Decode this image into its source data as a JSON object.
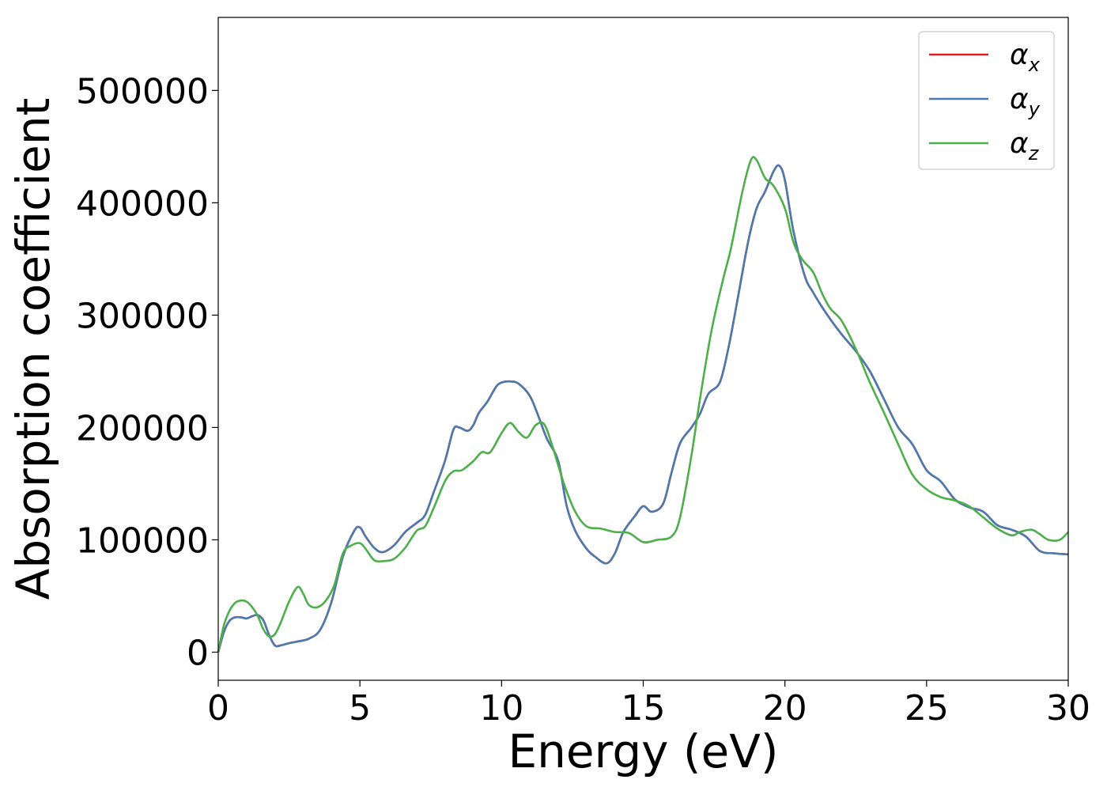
{
  "chart_data": {
    "type": "line",
    "xlabel": "Energy (eV)",
    "ylabel": "Absorption coefficient",
    "xlim": [
      0,
      30
    ],
    "ylim": [
      -25000,
      565000
    ],
    "xticks": [
      0,
      5,
      10,
      15,
      20,
      25,
      30
    ],
    "xtick_labels": [
      "0",
      "5",
      "10",
      "15",
      "20",
      "25",
      "30"
    ],
    "yticks": [
      0,
      100000,
      200000,
      300000,
      400000,
      500000
    ],
    "ytick_labels": [
      "0",
      "100000",
      "200000",
      "300000",
      "400000",
      "500000"
    ],
    "grid": false,
    "legend_position": "top-right",
    "series": [
      {
        "name": "α_x",
        "legend_main": "α",
        "legend_sub": "x",
        "color": "#e41a1c",
        "x": [
          0,
          0.2,
          0.4,
          0.6,
          0.8,
          1.0,
          1.2,
          1.4,
          1.6,
          1.8,
          2.0,
          2.2,
          2.5,
          2.8,
          3.2,
          3.6,
          4.0,
          4.4,
          4.8,
          5.0,
          5.2,
          5.5,
          5.8,
          6.2,
          6.6,
          7.0,
          7.3,
          7.6,
          8.0,
          8.3,
          8.5,
          8.8,
          9.0,
          9.2,
          9.5,
          9.8,
          10.0,
          10.3,
          10.6,
          11.0,
          11.3,
          11.6,
          12.0,
          12.3,
          12.6,
          13.0,
          13.3,
          13.7,
          14.0,
          14.3,
          14.7,
          15.0,
          15.3,
          15.7,
          16.0,
          16.3,
          16.7,
          17.0,
          17.3,
          17.7,
          18.0,
          18.3,
          18.7,
          19.0,
          19.3,
          19.6,
          19.8,
          20.0,
          20.3,
          20.7,
          21.0,
          21.5,
          22.0,
          22.5,
          23.0,
          23.5,
          24.0,
          24.5,
          25.0,
          25.5,
          26.0,
          26.5,
          27.0,
          27.5,
          28.0,
          28.5,
          29.0,
          29.5,
          30.0
        ],
        "y": [
          0,
          18000,
          28000,
          31000,
          31000,
          30000,
          32000,
          33000,
          28000,
          15000,
          6000,
          6000,
          8000,
          9500,
          12000,
          20000,
          45000,
          85000,
          108000,
          111000,
          103000,
          93000,
          89000,
          95000,
          107000,
          115000,
          122000,
          142000,
          170000,
          198000,
          200000,
          197000,
          202000,
          213000,
          223000,
          236000,
          240000,
          241000,
          239000,
          228000,
          210000,
          190000,
          170000,
          130000,
          108000,
          92000,
          85000,
          79000,
          88000,
          107000,
          121000,
          130000,
          125000,
          132000,
          160000,
          186000,
          200000,
          212000,
          230000,
          240000,
          270000,
          310000,
          365000,
          395000,
          410000,
          428000,
          433000,
          420000,
          375000,
          335000,
          320000,
          300000,
          283000,
          268000,
          250000,
          225000,
          200000,
          185000,
          162000,
          152000,
          136000,
          129000,
          125000,
          113000,
          109000,
          103000,
          90000,
          88000,
          87000
        ]
      },
      {
        "name": "α_y",
        "legend_main": "α",
        "legend_sub": "y",
        "color": "#4a7aae",
        "x": [
          0,
          0.2,
          0.4,
          0.6,
          0.8,
          1.0,
          1.2,
          1.4,
          1.6,
          1.8,
          2.0,
          2.2,
          2.5,
          2.8,
          3.2,
          3.6,
          4.0,
          4.4,
          4.8,
          5.0,
          5.2,
          5.5,
          5.8,
          6.2,
          6.6,
          7.0,
          7.3,
          7.6,
          8.0,
          8.3,
          8.5,
          8.8,
          9.0,
          9.2,
          9.5,
          9.8,
          10.0,
          10.3,
          10.6,
          11.0,
          11.3,
          11.6,
          12.0,
          12.3,
          12.6,
          13.0,
          13.3,
          13.7,
          14.0,
          14.3,
          14.7,
          15.0,
          15.3,
          15.7,
          16.0,
          16.3,
          16.7,
          17.0,
          17.3,
          17.7,
          18.0,
          18.3,
          18.7,
          19.0,
          19.3,
          19.6,
          19.8,
          20.0,
          20.3,
          20.7,
          21.0,
          21.5,
          22.0,
          22.5,
          23.0,
          23.5,
          24.0,
          24.5,
          25.0,
          25.5,
          26.0,
          26.5,
          27.0,
          27.5,
          28.0,
          28.5,
          29.0,
          29.5,
          30.0
        ],
        "y": [
          0,
          18000,
          28000,
          31000,
          31000,
          30000,
          32000,
          33000,
          28000,
          15000,
          6000,
          6000,
          8000,
          9500,
          12000,
          20000,
          45000,
          85000,
          108000,
          111000,
          103000,
          93000,
          89000,
          95000,
          107000,
          115000,
          122000,
          142000,
          170000,
          198000,
          200000,
          197000,
          202000,
          213000,
          223000,
          236000,
          240000,
          241000,
          239000,
          228000,
          210000,
          190000,
          170000,
          130000,
          108000,
          92000,
          85000,
          79000,
          88000,
          107000,
          121000,
          130000,
          125000,
          132000,
          160000,
          186000,
          200000,
          212000,
          230000,
          240000,
          270000,
          310000,
          365000,
          395000,
          410000,
          428000,
          433000,
          420000,
          375000,
          335000,
          320000,
          300000,
          283000,
          268000,
          250000,
          225000,
          200000,
          185000,
          162000,
          152000,
          136000,
          129000,
          125000,
          113000,
          109000,
          103000,
          90000,
          88000,
          87000
        ]
      },
      {
        "name": "α_z",
        "legend_main": "α",
        "legend_sub": "z",
        "color": "#4daf4a",
        "x": [
          0,
          0.2,
          0.4,
          0.6,
          0.8,
          1.0,
          1.2,
          1.4,
          1.6,
          1.8,
          2.0,
          2.2,
          2.5,
          2.8,
          3.0,
          3.2,
          3.5,
          3.8,
          4.1,
          4.4,
          4.7,
          5.0,
          5.2,
          5.5,
          5.8,
          6.2,
          6.6,
          7.0,
          7.3,
          7.6,
          8.0,
          8.3,
          8.6,
          9.0,
          9.3,
          9.6,
          10.0,
          10.3,
          10.6,
          10.9,
          11.2,
          11.5,
          11.8,
          12.2,
          12.6,
          13.0,
          13.5,
          14.0,
          14.5,
          15.0,
          15.5,
          16.0,
          16.3,
          16.7,
          17.0,
          17.4,
          17.8,
          18.1,
          18.5,
          18.8,
          19.0,
          19.3,
          19.6,
          20.0,
          20.3,
          20.6,
          21.0,
          21.3,
          21.6,
          22.0,
          22.5,
          23.0,
          23.5,
          24.0,
          24.5,
          25.0,
          25.5,
          26.0,
          26.5,
          27.0,
          27.5,
          28.0,
          28.3,
          28.7,
          29.0,
          29.3,
          29.7,
          30.0
        ],
        "y": [
          0,
          24000,
          37000,
          44000,
          46000,
          45000,
          40000,
          32000,
          20000,
          14000,
          16000,
          26000,
          45000,
          58000,
          52000,
          42000,
          40000,
          46000,
          60000,
          88000,
          95000,
          97000,
          92000,
          82000,
          81000,
          83000,
          93000,
          108000,
          112000,
          128000,
          152000,
          161000,
          162000,
          170000,
          178000,
          178000,
          195000,
          204000,
          196000,
          191000,
          202000,
          203000,
          183000,
          150000,
          125000,
          112000,
          110000,
          107000,
          106000,
          98000,
          100000,
          103000,
          120000,
          175000,
          225000,
          285000,
          330000,
          360000,
          410000,
          438000,
          438000,
          422000,
          415000,
          395000,
          365000,
          350000,
          338000,
          320000,
          306000,
          295000,
          270000,
          240000,
          213000,
          185000,
          158000,
          145000,
          138000,
          135000,
          130000,
          120000,
          110000,
          104000,
          107000,
          109000,
          105000,
          100000,
          100000,
          107000
        ]
      }
    ]
  }
}
